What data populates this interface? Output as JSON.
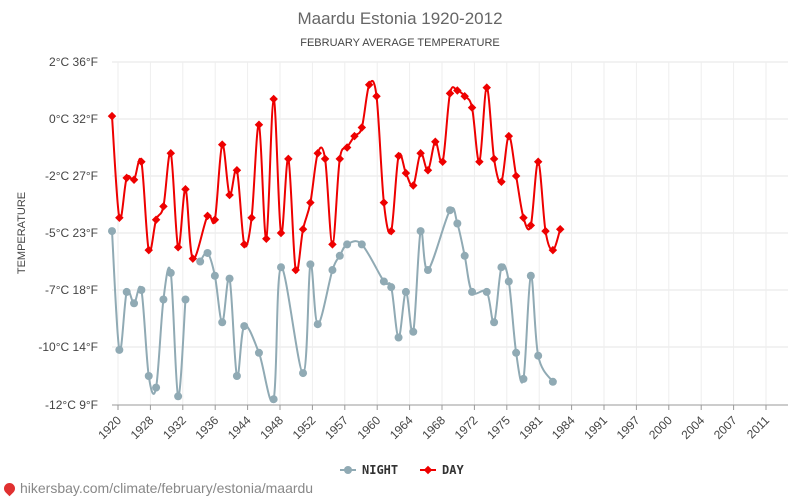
{
  "chart_data": {
    "type": "line",
    "title": "Maardu Estonia 1920-2012",
    "subtitle": "FEBRUARY AVERAGE TEMPERATURE",
    "ylabel": "TEMPERATURE",
    "ylim": [
      -12,
      3
    ],
    "y_ticks": [
      {
        "value": 2,
        "label": "2°C 36°F"
      },
      {
        "value": 0,
        "label": "0°C 32°F"
      },
      {
        "value": -2,
        "label": "-2°C 27°F"
      },
      {
        "value": -5,
        "label": "-5°C 23°F"
      },
      {
        "value": -7,
        "label": "-7°C 18°F"
      },
      {
        "value": -10,
        "label": "-10°C 14°F"
      },
      {
        "value": -12,
        "label": "-12°C 9°F"
      }
    ],
    "x_range": [
      1920,
      2012
    ],
    "x_ticks": [
      "1920",
      "1928",
      "1932",
      "1936",
      "1944",
      "1948",
      "1952",
      "1957",
      "1960",
      "1964",
      "1968",
      "1972",
      "1975",
      "1981",
      "1984",
      "1991",
      "1997",
      "2000",
      "2004",
      "2007",
      "2011"
    ],
    "legend_position": "bottom",
    "grid": true,
    "series": [
      {
        "name": "NIGHT",
        "color": "#90aab4",
        "points": [
          [
            1920,
            -4.9
          ],
          [
            1921,
            -10.1
          ],
          [
            1922,
            -7.1
          ],
          [
            1923,
            -7.7
          ],
          [
            1924,
            -7.0
          ],
          [
            1925,
            -11.0
          ],
          [
            1926,
            -11.4
          ],
          [
            1927,
            -7.5
          ],
          [
            1928,
            -6.4
          ],
          [
            1929,
            -11.7
          ],
          [
            1930,
            -7.5
          ],
          [
            1931,
            null
          ],
          [
            1932,
            -6.0
          ],
          [
            1933,
            -5.7
          ],
          [
            1934,
            -6.5
          ],
          [
            1935,
            -8.7
          ],
          [
            1936,
            -6.6
          ],
          [
            1937,
            -11.0
          ],
          [
            1938,
            -8.9
          ],
          [
            1940,
            -10.2
          ],
          [
            1942,
            -11.8
          ],
          [
            1943,
            -6.2
          ],
          [
            1946,
            -10.9
          ],
          [
            1947,
            -6.1
          ],
          [
            1948,
            -8.8
          ],
          [
            1950,
            -6.3
          ],
          [
            1951,
            -5.8
          ],
          [
            1952,
            -5.4
          ],
          [
            1954,
            -5.4
          ],
          [
            1957,
            -6.7
          ],
          [
            1958,
            -6.9
          ],
          [
            1959,
            -9.5
          ],
          [
            1960,
            -7.1
          ],
          [
            1961,
            -9.2
          ],
          [
            1962,
            -4.9
          ],
          [
            1963,
            -6.3
          ],
          [
            1966,
            -3.8
          ],
          [
            1967,
            -4.5
          ],
          [
            1968,
            -5.8
          ],
          [
            1969,
            -7.1
          ],
          [
            1971,
            -7.1
          ],
          [
            1972,
            -8.7
          ],
          [
            1973,
            -6.2
          ],
          [
            1974,
            -6.7
          ],
          [
            1975,
            -10.2
          ],
          [
            1976,
            -11.1
          ],
          [
            1977,
            -6.5
          ],
          [
            1978,
            -10.3
          ],
          [
            1980,
            -11.2
          ]
        ]
      },
      {
        "name": "DAY",
        "color": "#ee0000",
        "points": [
          [
            1920,
            0.1
          ],
          [
            1921,
            -4.2
          ],
          [
            1922,
            -2.1
          ],
          [
            1923,
            -2.2
          ],
          [
            1924,
            -1.5
          ],
          [
            1925,
            -5.6
          ],
          [
            1926,
            -4.3
          ],
          [
            1927,
            -3.6
          ],
          [
            1928,
            -1.2
          ],
          [
            1929,
            -5.5
          ],
          [
            1930,
            -2.7
          ],
          [
            1931,
            -5.9
          ],
          [
            1933,
            -4.1
          ],
          [
            1934,
            -4.3
          ],
          [
            1935,
            -0.9
          ],
          [
            1936,
            -3.0
          ],
          [
            1937,
            -1.8
          ],
          [
            1938,
            -5.4
          ],
          [
            1939,
            -4.2
          ],
          [
            1940,
            -0.2
          ],
          [
            1941,
            -5.2
          ],
          [
            1942,
            0.7
          ],
          [
            1943,
            -5.0
          ],
          [
            1944,
            -1.4
          ],
          [
            1945,
            -6.3
          ],
          [
            1946,
            -4.8
          ],
          [
            1947,
            -3.4
          ],
          [
            1948,
            -1.2
          ],
          [
            1949,
            -1.4
          ],
          [
            1950,
            -5.4
          ],
          [
            1951,
            -1.4
          ],
          [
            1952,
            -1.0
          ],
          [
            1953,
            -0.6
          ],
          [
            1954,
            -0.3
          ],
          [
            1955,
            1.2
          ],
          [
            1956,
            0.8
          ],
          [
            1957,
            -3.4
          ],
          [
            1958,
            -4.9
          ],
          [
            1959,
            -1.3
          ],
          [
            1960,
            -1.9
          ],
          [
            1961,
            -2.5
          ],
          [
            1962,
            -1.2
          ],
          [
            1963,
            -1.8
          ],
          [
            1964,
            -0.8
          ],
          [
            1965,
            -1.5
          ],
          [
            1966,
            0.9
          ],
          [
            1967,
            1.0
          ],
          [
            1968,
            0.8
          ],
          [
            1969,
            0.4
          ],
          [
            1970,
            -1.5
          ],
          [
            1971,
            1.1
          ],
          [
            1972,
            -1.4
          ],
          [
            1973,
            -2.3
          ],
          [
            1974,
            -0.6
          ],
          [
            1975,
            -2.0
          ],
          [
            1976,
            -4.2
          ],
          [
            1977,
            -4.6
          ],
          [
            1978,
            -1.5
          ],
          [
            1979,
            -4.9
          ],
          [
            1980,
            -5.6
          ],
          [
            1981,
            -4.8
          ]
        ]
      }
    ]
  },
  "watermark": "hikersbay.com/climate/february/estonia/maardu"
}
